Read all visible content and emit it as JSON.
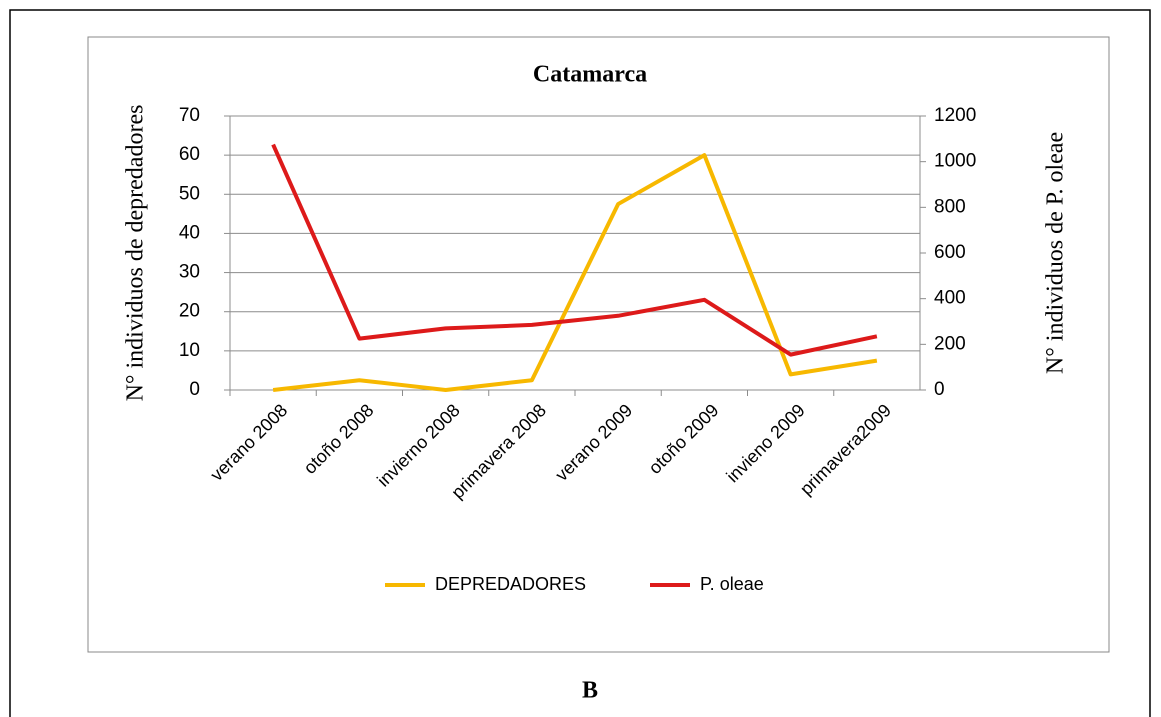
{
  "chart_data": {
    "type": "line",
    "title": "Catamarca",
    "panel_label": "B",
    "categories": [
      "verano 2008",
      "otoño 2008",
      "invierno 2008",
      "primavera 2008",
      "verano 2009",
      "otoño 2009",
      "invieno 2009",
      "primavera2009"
    ],
    "ylabel": "N° individuos de depredadores",
    "y2label": "N° individuos de P. oleae",
    "ylim": [
      0,
      70
    ],
    "yticks": [
      0,
      10,
      20,
      30,
      40,
      50,
      60,
      70
    ],
    "y2lim": [
      0,
      1200
    ],
    "y2ticks": [
      0,
      200,
      400,
      600,
      800,
      1000,
      1200
    ],
    "grid": true,
    "legend": "bottom",
    "series": [
      {
        "name": "DEPREDADORES",
        "color": "#f7b800",
        "values": [
          0,
          2.5,
          0,
          2.5,
          47.5,
          60,
          4,
          7.5
        ]
      },
      {
        "name": "P. oleae",
        "color": "#dd1a1a",
        "axis": "y2",
        "values": [
          1075,
          225,
          270,
          285,
          325,
          395,
          155,
          235
        ]
      }
    ]
  }
}
